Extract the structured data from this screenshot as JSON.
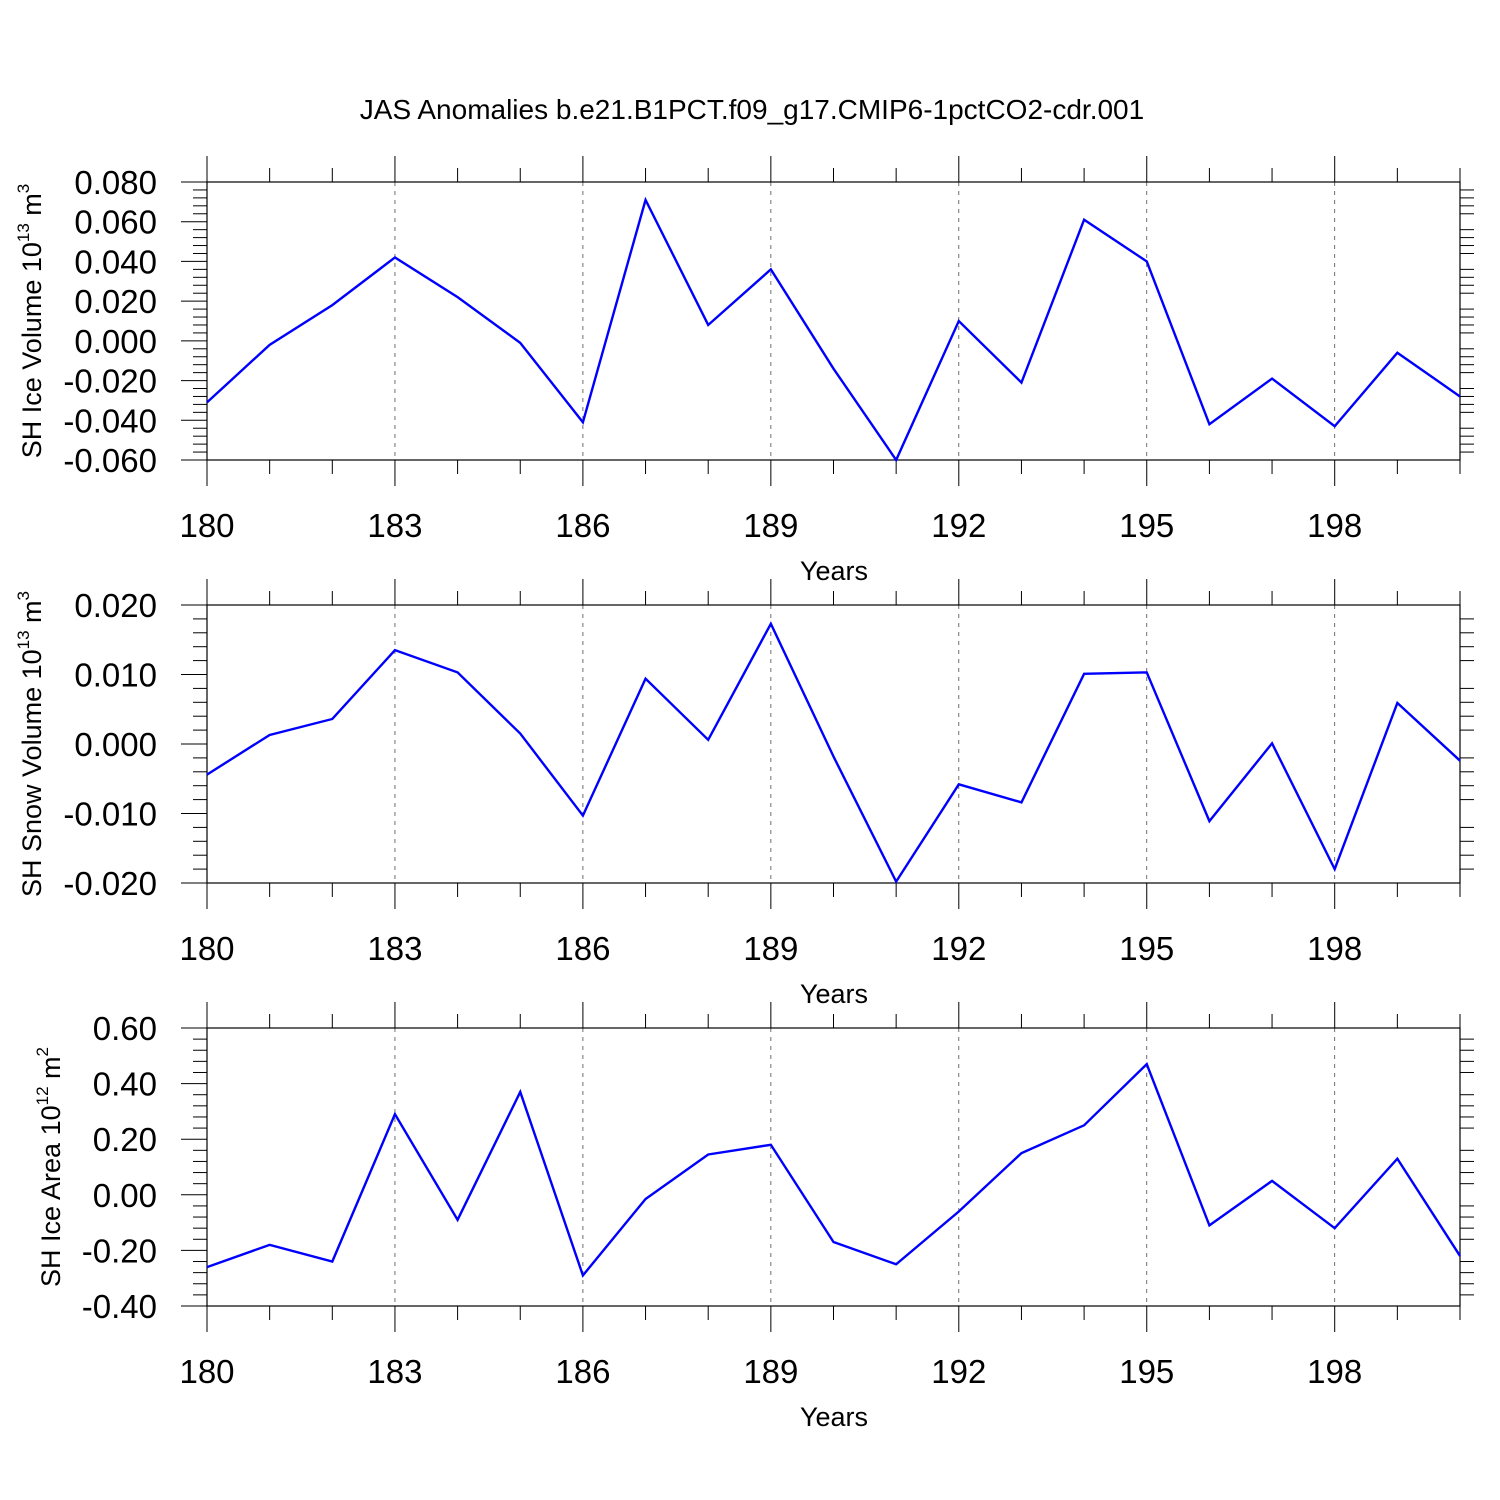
{
  "title": "JAS Anomalies b.e21.B1PCT.f09_g17.CMIP6-1pctCO2-cdr.001",
  "colors": {
    "series": "#0000ff",
    "axis": "#000000",
    "grid": "#000000"
  },
  "chart_data": [
    {
      "type": "line",
      "ylabel": {
        "prefix": "SH Ice Volume 10",
        "exp": "13",
        "unit": " m",
        "unit_exp": "3"
      },
      "xlabel": "Years",
      "x": [
        180,
        181,
        182,
        183,
        184,
        185,
        186,
        187,
        188,
        189,
        190,
        191,
        192,
        193,
        194,
        195,
        196,
        197,
        198,
        199,
        200
      ],
      "values": [
        -0.031,
        -0.002,
        0.018,
        0.042,
        0.022,
        -0.001,
        -0.041,
        0.071,
        0.008,
        0.036,
        -0.014,
        -0.06,
        0.01,
        -0.021,
        0.061,
        0.04,
        -0.042,
        -0.019,
        -0.043,
        -0.006,
        -0.028
      ],
      "xlim": [
        180,
        200
      ],
      "ylim": [
        -0.06,
        0.08
      ],
      "yticks": [
        -0.06,
        -0.04,
        -0.02,
        0.0,
        0.02,
        0.04,
        0.06,
        0.08
      ],
      "ytick_labels": [
        "-0.060",
        "-0.040",
        "-0.020",
        "0.000",
        "0.020",
        "0.040",
        "0.060",
        "0.080"
      ],
      "xticks": [
        180,
        183,
        186,
        189,
        192,
        195,
        198
      ],
      "xtick_labels": [
        "180",
        "183",
        "186",
        "189",
        "192",
        "195",
        "198"
      ],
      "grid": "vertical dashed at major x ticks"
    },
    {
      "type": "line",
      "ylabel": {
        "prefix": "SH Snow Volume 10",
        "exp": "13",
        "unit": " m",
        "unit_exp": "3"
      },
      "xlabel": "Years",
      "x": [
        180,
        181,
        182,
        183,
        184,
        185,
        186,
        187,
        188,
        189,
        190,
        191,
        192,
        193,
        194,
        195,
        196,
        197,
        198,
        199,
        200
      ],
      "values": [
        -0.0044,
        0.0013,
        0.0036,
        0.0135,
        0.0103,
        0.0015,
        -0.0103,
        0.0094,
        0.0006,
        0.0173,
        -0.0018,
        -0.0198,
        -0.0058,
        -0.0084,
        0.0101,
        0.0103,
        -0.0111,
        0.0001,
        -0.018,
        0.0059,
        -0.0024
      ],
      "xlim": [
        180,
        200
      ],
      "ylim": [
        -0.02,
        0.02
      ],
      "yticks": [
        -0.02,
        -0.01,
        0.0,
        0.01,
        0.02
      ],
      "ytick_labels": [
        "-0.020",
        "-0.010",
        "0.000",
        "0.010",
        "0.020"
      ],
      "xticks": [
        180,
        183,
        186,
        189,
        192,
        195,
        198
      ],
      "xtick_labels": [
        "180",
        "183",
        "186",
        "189",
        "192",
        "195",
        "198"
      ],
      "grid": "vertical dashed at major x ticks"
    },
    {
      "type": "line",
      "ylabel": {
        "prefix": "SH Ice Area 10",
        "exp": "12",
        "unit": " m",
        "unit_exp": "2"
      },
      "xlabel": "Years",
      "x": [
        180,
        181,
        182,
        183,
        184,
        185,
        186,
        187,
        188,
        189,
        190,
        191,
        192,
        193,
        194,
        195,
        196,
        197,
        198,
        199,
        200
      ],
      "values": [
        -0.26,
        -0.18,
        -0.24,
        0.29,
        -0.09,
        0.37,
        -0.29,
        -0.015,
        0.145,
        0.18,
        -0.17,
        -0.25,
        -0.06,
        0.15,
        0.25,
        0.47,
        -0.11,
        0.05,
        -0.12,
        0.13,
        -0.22
      ],
      "xlim": [
        180,
        200
      ],
      "ylim": [
        -0.4,
        0.6
      ],
      "yticks": [
        -0.4,
        -0.2,
        0.0,
        0.2,
        0.4,
        0.6
      ],
      "ytick_labels": [
        "-0.40",
        "-0.20",
        "0.00",
        "0.20",
        "0.40",
        "0.60"
      ],
      "xticks": [
        180,
        183,
        186,
        189,
        192,
        195,
        198
      ],
      "xtick_labels": [
        "180",
        "183",
        "186",
        "189",
        "192",
        "195",
        "198"
      ],
      "grid": "vertical dashed at major x ticks"
    }
  ]
}
